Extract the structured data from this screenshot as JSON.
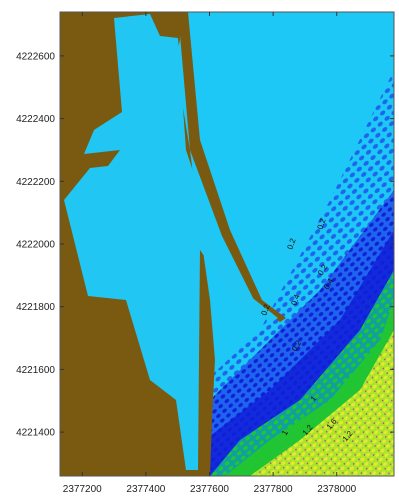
{
  "map": {
    "x_ticks": [
      "2377200",
      "2377400",
      "2377600",
      "2377800",
      "2378000"
    ],
    "y_ticks": [
      "4222600",
      "4222400",
      "4222200",
      "4222000",
      "4221800",
      "4221600",
      "4221400"
    ],
    "x_range": [
      2377130,
      2378180
    ],
    "y_range": [
      4221260,
      4222740
    ],
    "contour_labels": [
      "0.2",
      "0.2",
      "0.2",
      "0.2",
      "0.4",
      "0.4",
      "0.2",
      "1",
      "1.2",
      "1.6",
      "1",
      "1.2"
    ],
    "colors": {
      "land": "#7a5a10",
      "pier": "#22c6f2",
      "sea": "#1ec8f6",
      "band_dark_blue": "#1020d8",
      "band_blue": "#1e64ee",
      "band_mid_blue": "#1aa0f2",
      "band_teal": "#10a0a0",
      "band_green": "#22c82a",
      "band_yellow_green": "#a8e62a",
      "band_yellow": "#e8e830",
      "band_magenta": "#c040a0"
    }
  }
}
